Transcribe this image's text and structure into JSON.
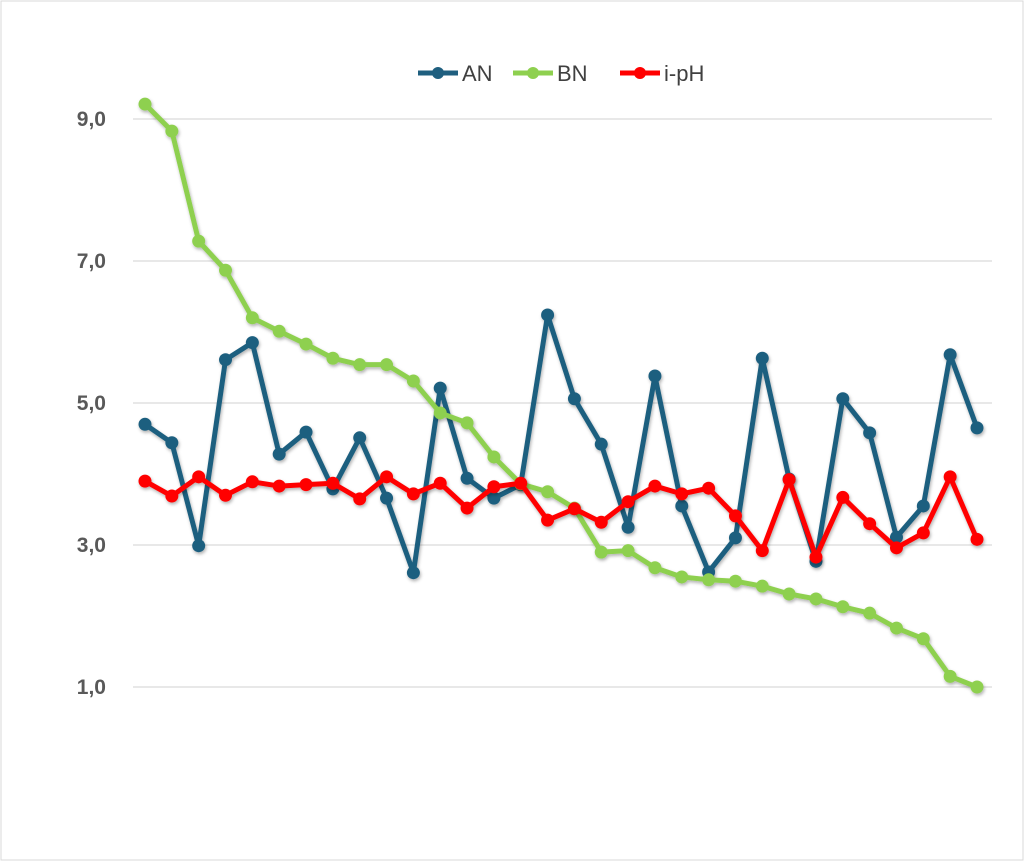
{
  "chart_data": {
    "type": "line",
    "title": "",
    "xlabel": "",
    "ylabel": "",
    "ylim": [
      1,
      9
    ],
    "yticks": [
      9,
      7,
      5,
      3,
      1
    ],
    "ytick_labels": [
      "9,0",
      "7,0",
      "5,0",
      "3,0",
      "1,0"
    ],
    "grid": true,
    "legend_position": "top-center",
    "x": [
      1,
      2,
      3,
      4,
      5,
      6,
      7,
      8,
      9,
      10,
      11,
      12,
      13,
      14,
      15,
      16,
      17,
      18,
      19,
      20,
      21,
      22,
      23,
      24,
      25,
      26,
      27,
      28,
      29,
      30,
      31,
      32
    ],
    "series": [
      {
        "name": "AN",
        "color": "#1F5F7F",
        "values": [
          4.7,
          4.44,
          2.99,
          5.61,
          5.85,
          4.28,
          4.59,
          3.79,
          4.51,
          3.66,
          2.61,
          5.21,
          3.94,
          3.66,
          3.85,
          6.24,
          5.06,
          4.42,
          3.25,
          5.38,
          3.55,
          2.62,
          3.1,
          5.63,
          3.93,
          2.77,
          5.06,
          4.58,
          3.11,
          3.55,
          5.68,
          4.65
        ]
      },
      {
        "name": "BN",
        "color": "#8ED04F",
        "values": [
          9.21,
          8.83,
          7.28,
          6.87,
          6.2,
          6.01,
          5.83,
          5.63,
          5.54,
          5.54,
          5.31,
          4.86,
          4.72,
          4.24,
          3.86,
          3.75,
          3.52,
          2.9,
          2.92,
          2.68,
          2.55,
          2.51,
          2.49,
          2.42,
          2.31,
          2.24,
          2.13,
          2.04,
          1.83,
          1.68,
          1.15,
          1.0
        ]
      },
      {
        "name": "i-pH",
        "color": "#FF0000",
        "values": [
          3.9,
          3.69,
          3.96,
          3.7,
          3.89,
          3.83,
          3.85,
          3.87,
          3.65,
          3.96,
          3.72,
          3.87,
          3.52,
          3.82,
          3.87,
          3.35,
          3.51,
          3.32,
          3.61,
          3.83,
          3.72,
          3.8,
          3.41,
          2.92,
          3.92,
          2.83,
          3.67,
          3.3,
          2.96,
          3.17,
          3.96,
          3.08
        ]
      }
    ]
  }
}
